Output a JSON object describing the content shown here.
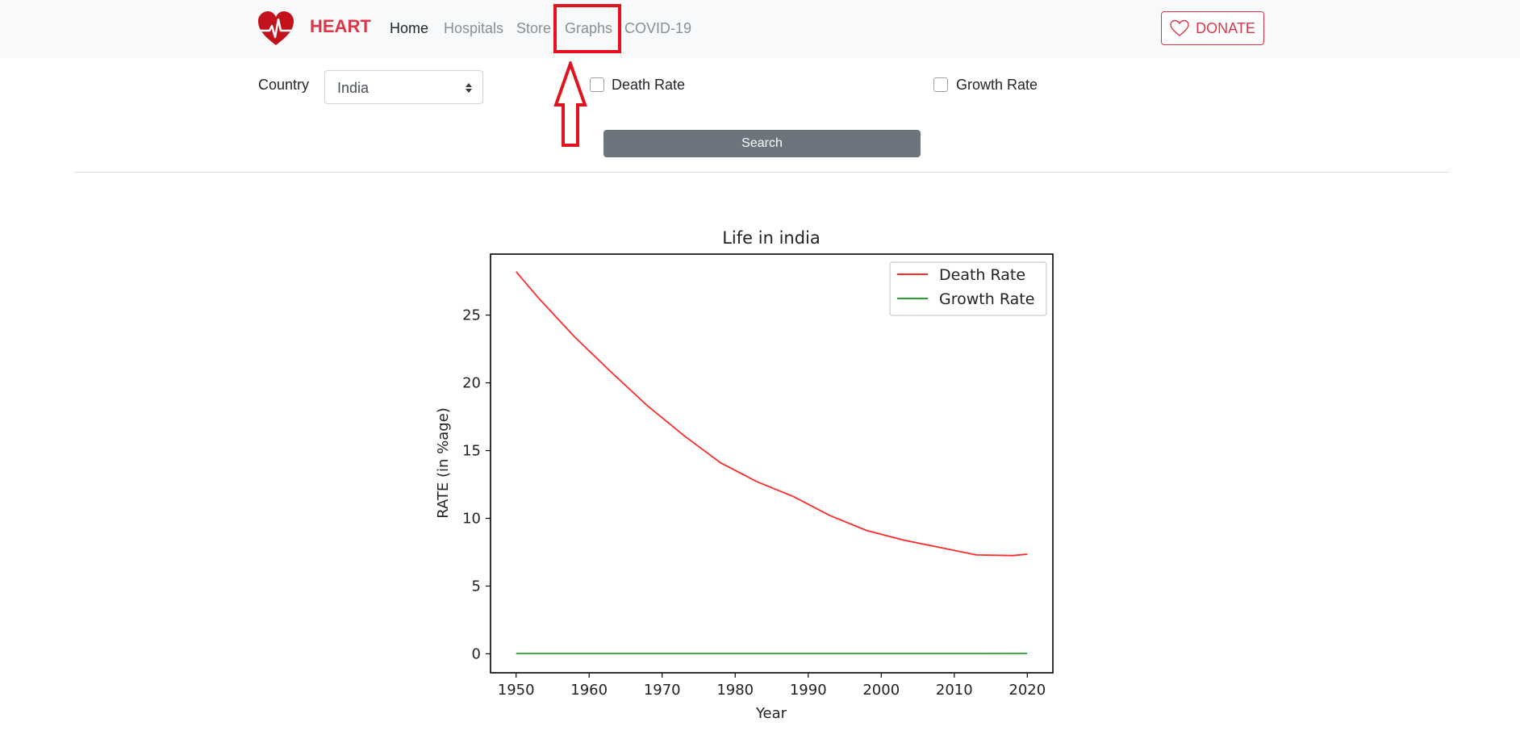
{
  "navbar": {
    "brand": "HEART",
    "links": [
      {
        "label": "Home"
      },
      {
        "label": "Hospitals"
      },
      {
        "label": "Store"
      },
      {
        "label": "Graphs"
      },
      {
        "label": "COVID-19"
      }
    ],
    "donate_label": "DONATE"
  },
  "filters": {
    "country_label": "Country",
    "country_value": "India",
    "death_rate_label": "Death Rate",
    "growth_rate_label": "Growth Rate",
    "search_label": "Search"
  },
  "colors": {
    "brand": "#dc3545",
    "highlight": "#e0141e",
    "death_line": "#ff2a2a",
    "growth_line": "#2ca02c",
    "search_button": "#6c757d"
  },
  "chart_data": {
    "type": "line",
    "title": "Life in india",
    "xlabel": "Year",
    "ylabel": "RATE (in %age)",
    "xlim": [
      1946.5,
      2023.5
    ],
    "ylim": [
      -1.4,
      29.5
    ],
    "xticks": [
      1950,
      1960,
      1970,
      1980,
      1990,
      2000,
      2010,
      2020
    ],
    "yticks": [
      0,
      5,
      10,
      15,
      20,
      25
    ],
    "legend_position": "top-right",
    "grid": false,
    "series": [
      {
        "name": "Death Rate",
        "color": "#ff2a2a",
        "x": [
          1950,
          1953,
          1958,
          1963,
          1968,
          1973,
          1978,
          1983,
          1988,
          1993,
          1998,
          2003,
          2008,
          2013,
          2018,
          2020
        ],
        "y": [
          28.2,
          26.3,
          23.4,
          20.8,
          18.3,
          16.1,
          14.1,
          12.7,
          11.6,
          10.2,
          9.1,
          8.4,
          7.85,
          7.3,
          7.25,
          7.35
        ]
      },
      {
        "name": "Growth Rate",
        "color": "#2ca02c",
        "x": [
          1950,
          1960,
          1970,
          1980,
          1990,
          2000,
          2010,
          2020
        ],
        "y": [
          0.02,
          0.02,
          0.02,
          0.02,
          0.02,
          0.02,
          0.02,
          0.03
        ]
      }
    ]
  }
}
